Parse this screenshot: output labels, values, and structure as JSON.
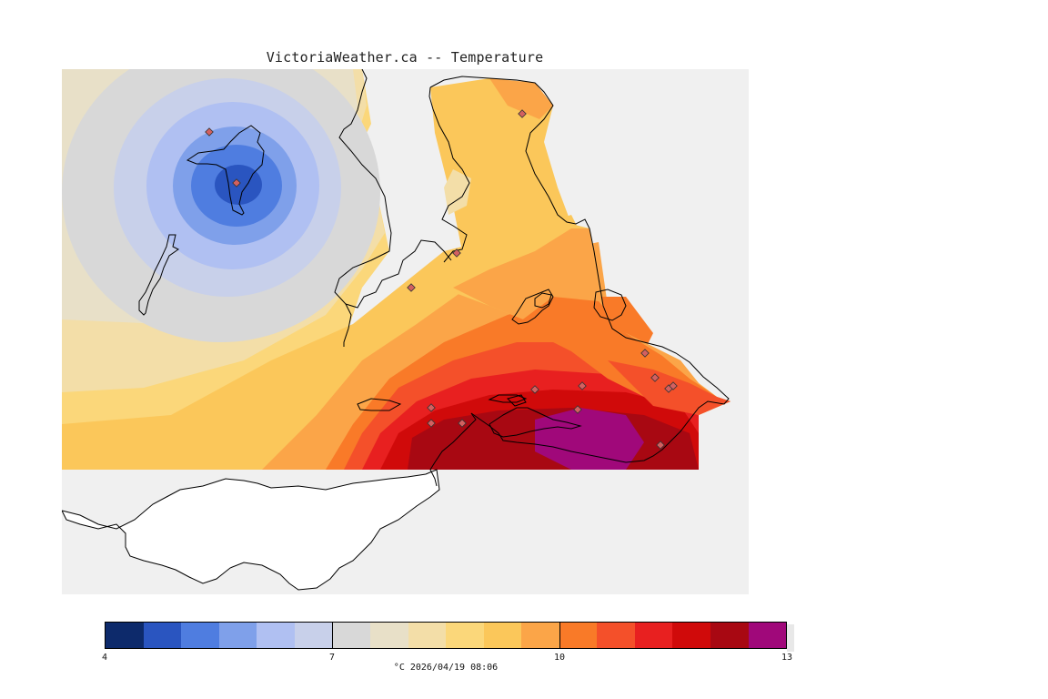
{
  "title": "VictoriaWeather.ca -- Temperature",
  "colorbar": {
    "colors": [
      "#0d2a6b",
      "#2a55c0",
      "#4f7de0",
      "#7fa0ea",
      "#b0c0f2",
      "#c8d0ea",
      "#d8d8d8",
      "#e8e0c8",
      "#f3dea8",
      "#fbd77a",
      "#fbc75a",
      "#fba548",
      "#f97a28",
      "#f4502a",
      "#e82020",
      "#d00a0a",
      "#a80812",
      "#a0087a"
    ],
    "ticks": [
      {
        "label": "4",
        "value": 4
      },
      {
        "label": "7",
        "value": 7
      },
      {
        "label": "10",
        "value": 10
      },
      {
        "label": "13",
        "value": 13
      }
    ],
    "min": 4,
    "max": 13,
    "caption": "°C  2026/04/19 08:06"
  },
  "map": {
    "background_color": "#f0f0f0",
    "land_no_data_color": "#ffffff",
    "station_count": 16
  }
}
